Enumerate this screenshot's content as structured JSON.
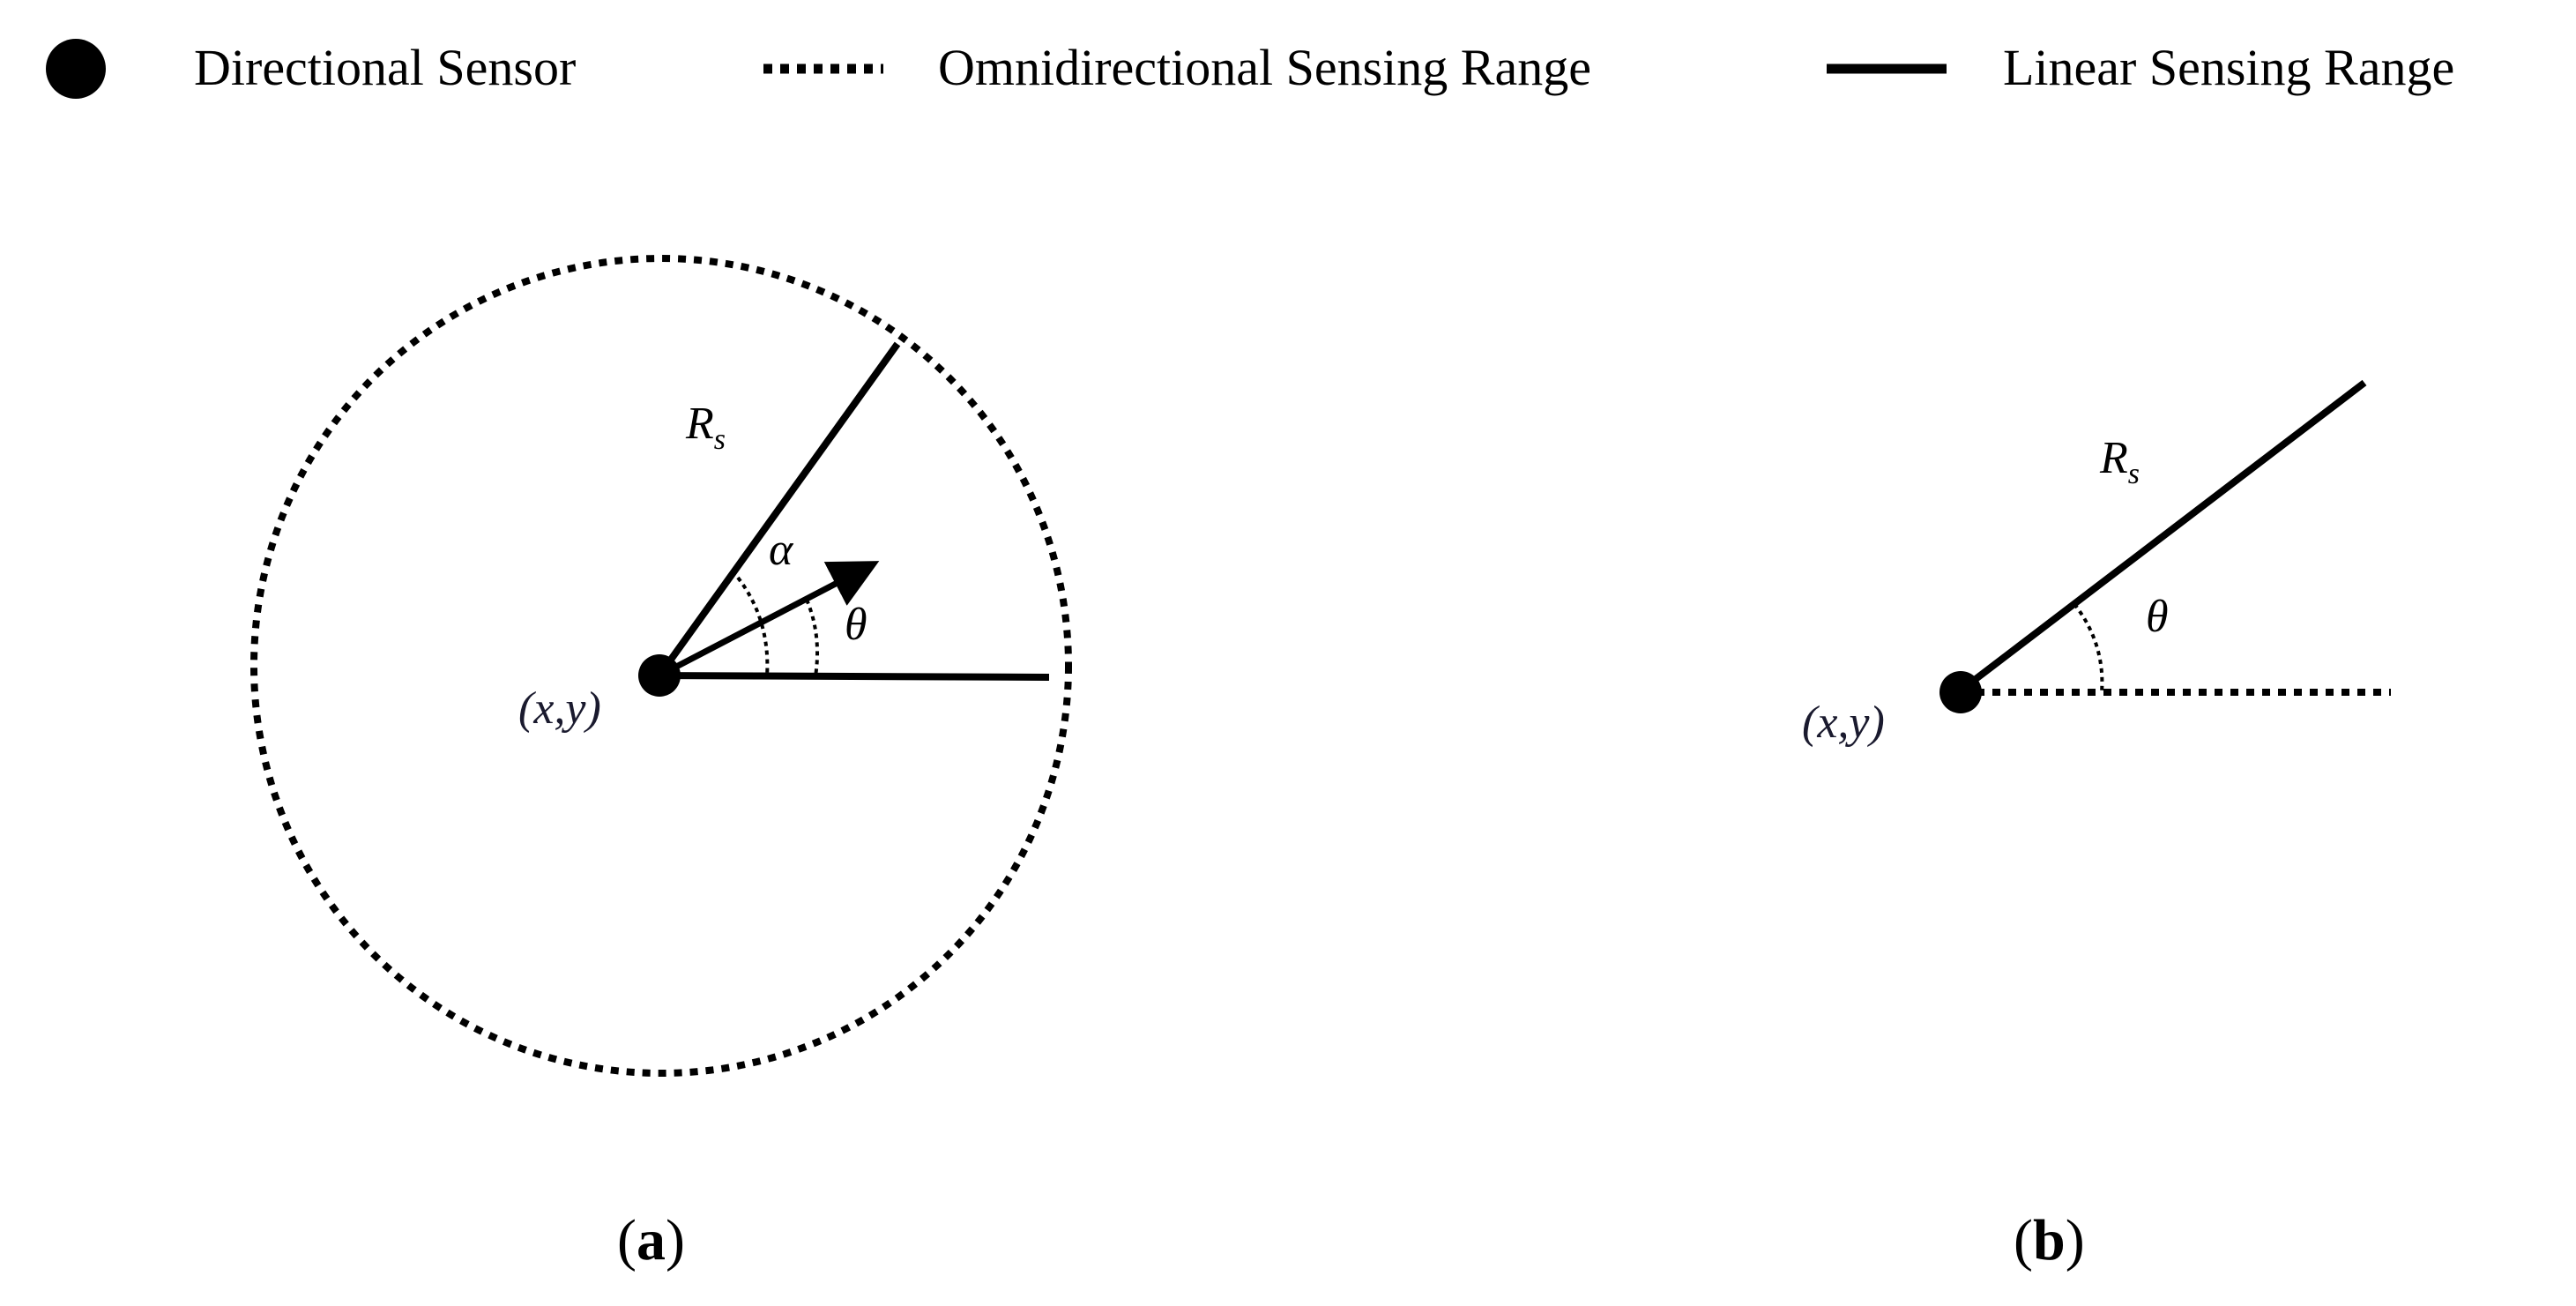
{
  "legend": {
    "sensor_label": "Directional Sensor",
    "omni_label": "Omnidirectional Sensing Range",
    "linear_label": "Linear Sensing Range"
  },
  "panel_a": {
    "radius_label": "R",
    "radius_subscript": "s",
    "alpha_label": "α",
    "theta_label": "θ",
    "position_label": "(x,y)",
    "caption_open": "(",
    "caption_letter": "a",
    "caption_close": ")"
  },
  "panel_b": {
    "radius_label": "R",
    "radius_subscript": "s",
    "theta_label": "θ",
    "position_label": "(x,y)",
    "caption_open": "(",
    "caption_letter": "b",
    "caption_close": ")"
  },
  "colors": {
    "ink": "#000000",
    "background": "#ffffff",
    "label_dark_blue": "#1a1a2e"
  }
}
